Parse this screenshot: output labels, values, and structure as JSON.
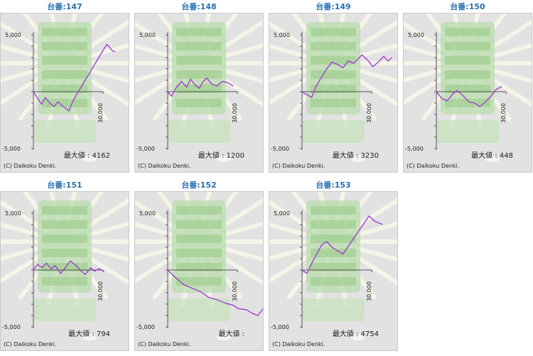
{
  "copyright": "(C) Daikoku Denki.",
  "max_label": "最大値 : ",
  "colors": {
    "line": "#a040d0",
    "title": "#2a6fb0",
    "panel_bg": "#e2e2e2",
    "deco": "#8fcf7f"
  },
  "chart_data": [
    {
      "type": "line",
      "title": "台番:147",
      "max_value": "4162",
      "ylim": [
        -5000,
        5000
      ],
      "yticks": [
        "5,000",
        "-5,000"
      ],
      "xtick": "30,000",
      "series": [
        {
          "points": [
            [
              0,
              0
            ],
            [
              800,
              -600
            ],
            [
              1500,
              -1100
            ],
            [
              2200,
              -500
            ],
            [
              3000,
              -1000
            ],
            [
              3800,
              -1300
            ],
            [
              4500,
              -900
            ],
            [
              5200,
              -1200
            ],
            [
              6000,
              -1500
            ],
            [
              6500,
              -1700
            ],
            [
              7200,
              -900
            ],
            [
              8000,
              -200
            ],
            [
              9000,
              600
            ],
            [
              10000,
              1400
            ],
            [
              11000,
              2200
            ],
            [
              12000,
              3000
            ],
            [
              13000,
              3800
            ],
            [
              13500,
              4162
            ],
            [
              14500,
              3600
            ],
            [
              15000,
              3500
            ]
          ]
        }
      ]
    },
    {
      "type": "line",
      "title": "台番:148",
      "max_value": "1200",
      "ylim": [
        -5000,
        5000
      ],
      "yticks": [
        "5,000",
        "-5,000"
      ],
      "xtick": "30,000",
      "series": [
        {
          "points": [
            [
              0,
              0
            ],
            [
              700,
              -400
            ],
            [
              1500,
              300
            ],
            [
              2500,
              900
            ],
            [
              3500,
              400
            ],
            [
              4200,
              1100
            ],
            [
              5000,
              600
            ],
            [
              5800,
              300
            ],
            [
              6500,
              900
            ],
            [
              7200,
              1200
            ],
            [
              8000,
              700
            ],
            [
              9000,
              500
            ],
            [
              10000,
              900
            ],
            [
              11000,
              800
            ],
            [
              12000,
              500
            ]
          ]
        }
      ]
    },
    {
      "type": "line",
      "title": "台番:149",
      "max_value": "3230",
      "ylim": [
        -5000,
        5000
      ],
      "yticks": [
        "5,000",
        "-5,000"
      ],
      "xtick": "30,000",
      "series": [
        {
          "points": [
            [
              0,
              0
            ],
            [
              1000,
              -300
            ],
            [
              1800,
              -500
            ],
            [
              2600,
              500
            ],
            [
              3500,
              1200
            ],
            [
              4500,
              2000
            ],
            [
              5500,
              2600
            ],
            [
              6500,
              2400
            ],
            [
              7500,
              2100
            ],
            [
              8500,
              2700
            ],
            [
              9500,
              2500
            ],
            [
              10500,
              3000
            ],
            [
              11000,
              3230
            ],
            [
              12000,
              2800
            ],
            [
              13000,
              2200
            ],
            [
              14000,
              2600
            ],
            [
              15000,
              3100
            ],
            [
              15800,
              2700
            ],
            [
              16500,
              3000
            ]
          ]
        }
      ]
    },
    {
      "type": "line",
      "title": "台番:150",
      "max_value": "448",
      "ylim": [
        -5000,
        5000
      ],
      "yticks": [
        "5,000",
        "-5,000"
      ],
      "xtick": "30,000",
      "series": [
        {
          "points": [
            [
              0,
              0
            ],
            [
              1000,
              -600
            ],
            [
              2000,
              -800
            ],
            [
              3000,
              -200
            ],
            [
              3800,
              100
            ],
            [
              5000,
              -400
            ],
            [
              6000,
              -900
            ],
            [
              7000,
              -1000
            ],
            [
              8000,
              -1300
            ],
            [
              9000,
              -900
            ],
            [
              10000,
              -400
            ],
            [
              11000,
              200
            ],
            [
              12000,
              448
            ]
          ]
        }
      ]
    },
    {
      "type": "line",
      "title": "台番:151",
      "max_value": "794",
      "ylim": [
        -5000,
        5000
      ],
      "yticks": [
        "5,000",
        "-5,000"
      ],
      "xtick": "30,000",
      "series": [
        {
          "points": [
            [
              0,
              0
            ],
            [
              800,
              500
            ],
            [
              1600,
              200
            ],
            [
              2400,
              600
            ],
            [
              3300,
              100
            ],
            [
              4000,
              400
            ],
            [
              5000,
              -300
            ],
            [
              6000,
              300
            ],
            [
              6800,
              794
            ],
            [
              7800,
              400
            ],
            [
              8800,
              -100
            ],
            [
              9500,
              -400
            ],
            [
              10500,
              200
            ],
            [
              11200,
              -100
            ],
            [
              12000,
              100
            ],
            [
              13000,
              -100
            ]
          ]
        }
      ]
    },
    {
      "type": "line",
      "title": "台番:152",
      "max_value": "",
      "ylim": [
        -5000,
        5000
      ],
      "yticks": [
        "5,000",
        "-5,000"
      ],
      "xtick": "30,000",
      "series": [
        {
          "points": [
            [
              0,
              0
            ],
            [
              1500,
              -700
            ],
            [
              3000,
              -1300
            ],
            [
              4500,
              -1600
            ],
            [
              6000,
              -1900
            ],
            [
              7500,
              -2400
            ],
            [
              9000,
              -2600
            ],
            [
              10500,
              -2900
            ],
            [
              12000,
              -3100
            ],
            [
              13000,
              -3400
            ],
            [
              14500,
              -3500
            ],
            [
              15500,
              -3800
            ],
            [
              16500,
              -4000
            ],
            [
              17200,
              -3600
            ],
            [
              18000,
              -3100
            ]
          ]
        }
      ]
    },
    {
      "type": "line",
      "title": "台番:153",
      "max_value": "4754",
      "ylim": [
        -5000,
        5000
      ],
      "yticks": [
        "5,000",
        "-5,000"
      ],
      "xtick": "30,000",
      "series": [
        {
          "points": [
            [
              0,
              0
            ],
            [
              900,
              -300
            ],
            [
              1800,
              600
            ],
            [
              2700,
              1400
            ],
            [
              3600,
              2200
            ],
            [
              4500,
              2500
            ],
            [
              5500,
              2000
            ],
            [
              6500,
              1700
            ],
            [
              7500,
              1400
            ],
            [
              8500,
              2100
            ],
            [
              9500,
              2800
            ],
            [
              10500,
              3500
            ],
            [
              11500,
              4200
            ],
            [
              12300,
              4754
            ],
            [
              13300,
              4300
            ],
            [
              14300,
              4100
            ],
            [
              14800,
              4000
            ]
          ]
        }
      ]
    }
  ]
}
